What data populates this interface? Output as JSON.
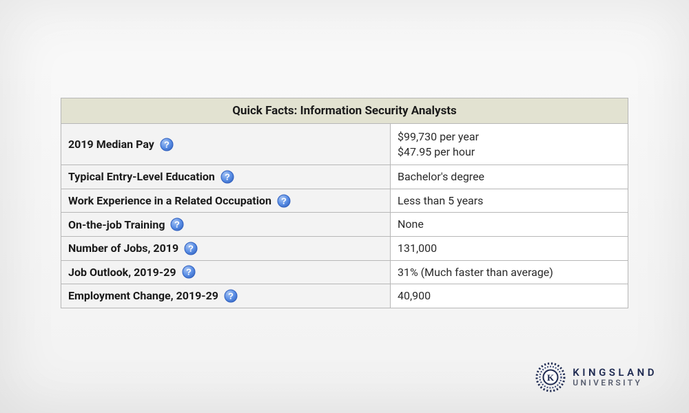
{
  "colors": {
    "page_bg_top": "#f9f9f9",
    "page_bg_bottom": "#f2f2f2",
    "table_border": "#b7b7b7",
    "header_bg": "#e2e2d1",
    "label_bg": "#f3f3f3",
    "value_bg": "#ffffff",
    "text": "#1b1b1b",
    "help_fill": "#5b8fe6",
    "help_stroke": "#2f5fbf",
    "logo_primary": "#1f2b52",
    "logo_secondary": "#5b6172"
  },
  "table": {
    "title": "Quick Facts: Information Security Analysts",
    "rows": [
      {
        "label": "2019 Median Pay",
        "value_line1": "$99,730 per year",
        "value_line2": "$47.95 per hour",
        "tall": true
      },
      {
        "label": "Typical Entry-Level Education",
        "value_line1": "Bachelor's degree"
      },
      {
        "label": "Work Experience in a Related Occupation",
        "value_line1": "Less than 5 years"
      },
      {
        "label": "On-the-job Training",
        "value_line1": "None"
      },
      {
        "label": "Number of Jobs, 2019",
        "value_line1": "131,000"
      },
      {
        "label": "Job Outlook, 2019-29",
        "value_line1": "31% (Much faster than average)"
      },
      {
        "label": "Employment Change, 2019-29",
        "value_line1": "40,900"
      }
    ]
  },
  "logo": {
    "line1": "KINGSLAND",
    "line2": "UNIVERSITY",
    "letter": "K"
  }
}
